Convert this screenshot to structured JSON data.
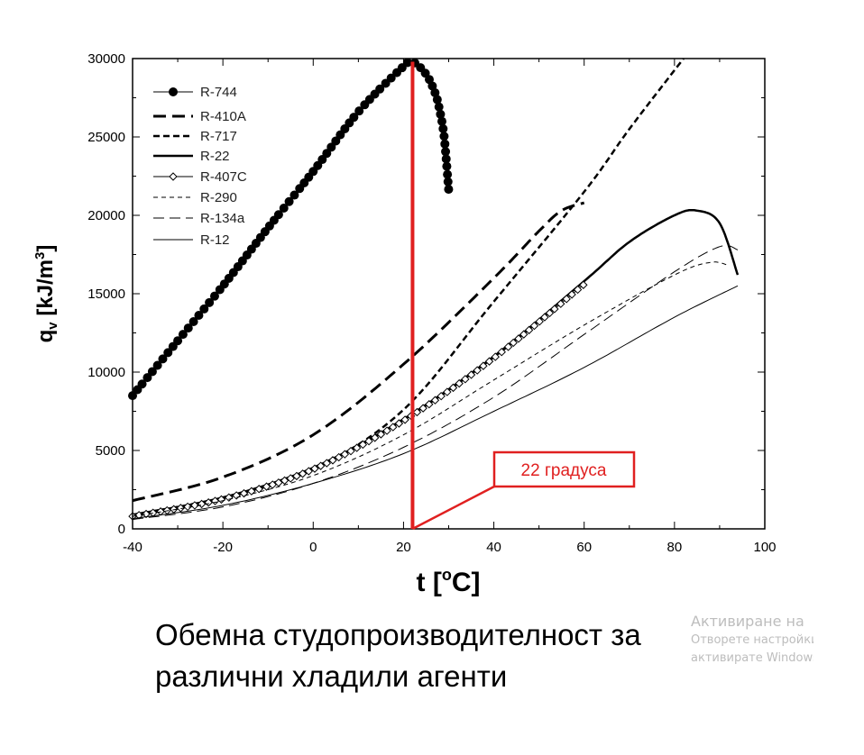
{
  "chart_data": {
    "type": "line",
    "title": "",
    "xlabel": "t [oC]",
    "xlabel_main": "t [",
    "xlabel_sup": "o",
    "xlabel_end": "C]",
    "ylabel": "qv [kJ/m3]",
    "xlim": [
      -40,
      100
    ],
    "ylim": [
      0,
      30000
    ],
    "xticks": [
      -40,
      -20,
      0,
      20,
      40,
      60,
      80,
      100
    ],
    "yticks": [
      0,
      5000,
      10000,
      15000,
      20000,
      25000,
      30000
    ],
    "legend_position": "top-left",
    "series": [
      {
        "name": "R-744",
        "x": [
          -40,
          -30,
          -20,
          -10,
          0,
          10,
          20,
          22,
          25,
          27,
          28,
          29,
          30
        ],
        "y": [
          8500,
          12000,
          15500,
          19200,
          22800,
          26600,
          29500,
          29800,
          29000,
          27800,
          26700,
          25000,
          21600
        ]
      },
      {
        "name": "R-410A",
        "x": [
          -40,
          -20,
          0,
          20,
          40,
          50,
          55,
          60
        ],
        "y": [
          1800,
          3300,
          6000,
          10500,
          16000,
          19000,
          20300,
          20800
        ]
      },
      {
        "name": "R-717",
        "x": [
          -40,
          -20,
          0,
          20,
          40,
          60,
          70,
          82
        ],
        "y": [
          900,
          2000,
          3800,
          7600,
          14500,
          21500,
          25500,
          30000
        ]
      },
      {
        "name": "R-22",
        "x": [
          -40,
          -20,
          0,
          20,
          40,
          60,
          70,
          80,
          85,
          90,
          94
        ],
        "y": [
          900,
          2000,
          3900,
          7000,
          11000,
          15800,
          18300,
          20000,
          20300,
          19500,
          16200
        ]
      },
      {
        "name": "R-407C",
        "x": [
          -40,
          -20,
          0,
          20,
          40,
          60
        ],
        "y": [
          800,
          1900,
          3800,
          6900,
          10900,
          15600
        ]
      },
      {
        "name": "R-290",
        "x": [
          -40,
          -20,
          0,
          20,
          40,
          60,
          80,
          88,
          92
        ],
        "y": [
          800,
          1800,
          3400,
          6000,
          9500,
          13000,
          16200,
          17000,
          16800
        ]
      },
      {
        "name": "R-134a",
        "x": [
          -40,
          -20,
          0,
          20,
          40,
          60,
          80,
          90,
          94
        ],
        "y": [
          600,
          1400,
          2900,
          5200,
          8400,
          12400,
          16400,
          18000,
          17800
        ]
      },
      {
        "name": "R-12",
        "x": [
          -40,
          -20,
          0,
          20,
          40,
          60,
          80,
          94
        ],
        "y": [
          650,
          1500,
          2900,
          4800,
          7500,
          10300,
          13500,
          15500
        ]
      }
    ],
    "annotations": [
      {
        "type": "vertical-line",
        "x": 22,
        "y_top": 29800,
        "color": "#e02020",
        "label": "22 градуса"
      }
    ]
  },
  "caption": {
    "line1": "Обемна студопроизводителност за",
    "line2": "различни хладили агенти"
  },
  "watermark": {
    "line1": "Активиране на",
    "line2": "Отворете настройките, за да",
    "line3": "активирате Windows"
  }
}
